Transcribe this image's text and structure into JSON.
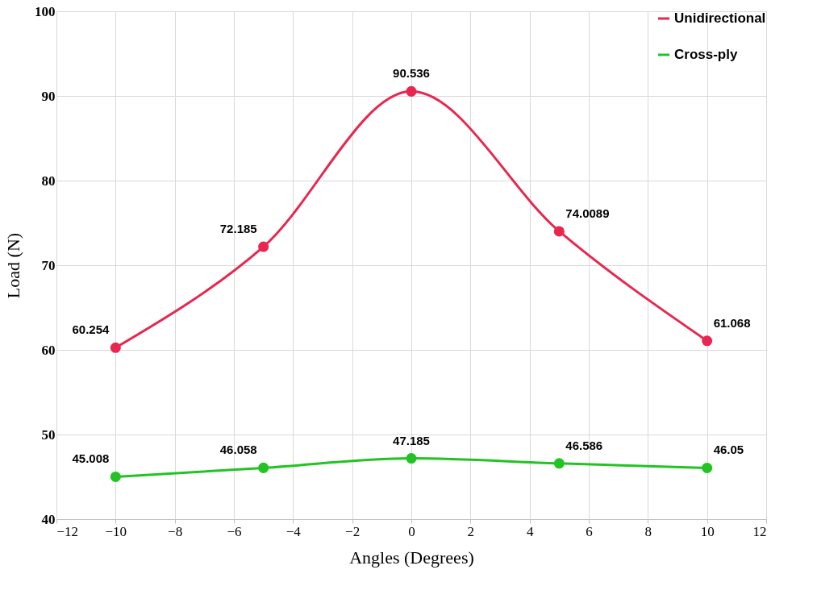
{
  "chart_data": {
    "type": "line",
    "xlabel": "Angles (Degrees)",
    "ylabel": "Load (N)",
    "x": [
      -10,
      -5,
      0,
      5,
      10
    ],
    "series": [
      {
        "name": "Unidirectional",
        "color": "#e8264f",
        "values": [
          60.254,
          72.185,
          90.536,
          74.0089,
          61.068
        ]
      },
      {
        "name": "Cross-ply",
        "color": "#22c322",
        "values": [
          45.008,
          46.058,
          47.185,
          46.586,
          46.05
        ]
      }
    ],
    "xlim": [
      -12,
      12
    ],
    "xticks": [
      -12,
      -10,
      -8,
      -6,
      -4,
      -2,
      0,
      2,
      4,
      6,
      8,
      10,
      12
    ],
    "ylim": [
      40,
      100
    ],
    "yticks": [
      40,
      50,
      60,
      70,
      80,
      90,
      100
    ],
    "grid": true,
    "legend": "top right",
    "marker": "circle",
    "line_style": "solid",
    "data_labels": true
  }
}
